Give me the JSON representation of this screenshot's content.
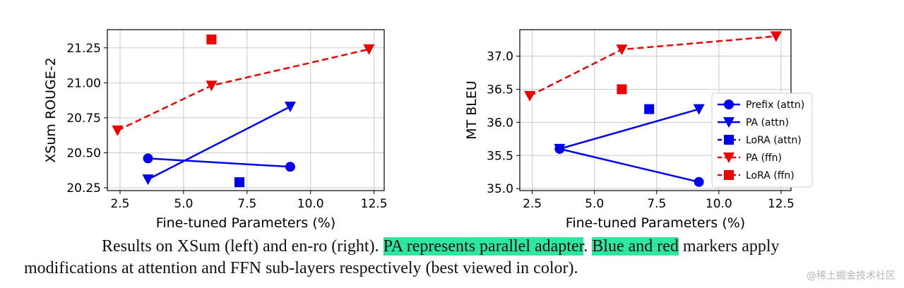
{
  "chart_data": [
    {
      "type": "line",
      "ylabel": "XSum ROUGE-2",
      "xlabel": "Fine-tuned Parameters (%)",
      "xlim": [
        2.0,
        12.9
      ],
      "ylim": [
        20.23,
        21.38
      ],
      "xticks": [
        "2.5",
        "5.0",
        "7.5",
        "10.0",
        "12.5"
      ],
      "xtick_values": [
        2.5,
        5.0,
        7.5,
        10.0,
        12.5
      ],
      "yticks": [
        "20.25",
        "20.50",
        "20.75",
        "21.00",
        "21.25"
      ],
      "ytick_values": [
        20.25,
        20.5,
        20.75,
        21.0,
        21.25
      ],
      "grid": true,
      "legend": null,
      "series": [
        {
          "name": "Prefix (attn)",
          "color": "#0000ee",
          "marker": "circle",
          "line": "solid",
          "x": [
            3.6,
            9.2
          ],
          "y": [
            20.46,
            20.4
          ]
        },
        {
          "name": "PA (attn)",
          "color": "#0000ee",
          "marker": "triangle-down",
          "line": "solid",
          "x": [
            3.6,
            9.2
          ],
          "y": [
            20.31,
            20.83
          ]
        },
        {
          "name": "LoRA (attn)",
          "color": "#0000ee",
          "marker": "square",
          "line": "none",
          "x": [
            7.2
          ],
          "y": [
            20.29
          ]
        },
        {
          "name": "PA (ffn)",
          "color": "#ee0000",
          "marker": "triangle-down",
          "line": "dashed",
          "x": [
            2.4,
            6.1,
            12.3
          ],
          "y": [
            20.66,
            20.98,
            21.24
          ]
        },
        {
          "name": "LoRA (ffn)",
          "color": "#ee0000",
          "marker": "square",
          "line": "none",
          "x": [
            6.1
          ],
          "y": [
            21.31
          ]
        }
      ]
    },
    {
      "type": "line",
      "ylabel": "MT BLEU",
      "xlabel": "Fine-tuned Parameters (%)",
      "xlim": [
        2.0,
        12.9
      ],
      "ylim": [
        34.97,
        37.4
      ],
      "xticks": [
        "2.5",
        "5.0",
        "7.5",
        "10.0",
        "12.5"
      ],
      "xtick_values": [
        2.5,
        5.0,
        7.5,
        10.0,
        12.5
      ],
      "yticks": [
        "35.0",
        "35.5",
        "36.0",
        "36.5",
        "37.0"
      ],
      "ytick_values": [
        35.0,
        35.5,
        36.0,
        36.5,
        37.0
      ],
      "grid": true,
      "legend": "center-right",
      "series": [
        {
          "name": "Prefix (attn)",
          "color": "#0000ee",
          "marker": "circle",
          "line": "solid",
          "x": [
            3.6,
            9.2
          ],
          "y": [
            35.6,
            35.1
          ]
        },
        {
          "name": "PA (attn)",
          "color": "#0000ee",
          "marker": "triangle-down",
          "line": "solid",
          "x": [
            3.6,
            9.2
          ],
          "y": [
            35.6,
            36.2
          ]
        },
        {
          "name": "LoRA (attn)",
          "color": "#0000ee",
          "marker": "square",
          "line": "none",
          "x": [
            7.2
          ],
          "y": [
            36.2
          ]
        },
        {
          "name": "PA (ffn)",
          "color": "#ee0000",
          "marker": "triangle-down",
          "line": "dashed",
          "x": [
            2.4,
            6.1,
            12.3
          ],
          "y": [
            36.4,
            37.1,
            37.3
          ]
        },
        {
          "name": "LoRA (ffn)",
          "color": "#ee0000",
          "marker": "square",
          "line": "none",
          "x": [
            6.1
          ],
          "y": [
            36.5
          ]
        }
      ]
    }
  ],
  "caption": {
    "part1": "Results on XSum (left) and en-ro (right). ",
    "highlight1": "PA represents parallel adapter",
    "part2": ". ",
    "highlight2": "Blue and red",
    "part3": " markers apply",
    "line2": "modifications at attention and FFN sub-layers respectively (best viewed in color).",
    "highlight_color": "#2ee6a0"
  },
  "watermark": "@稀土掘金技术社区"
}
